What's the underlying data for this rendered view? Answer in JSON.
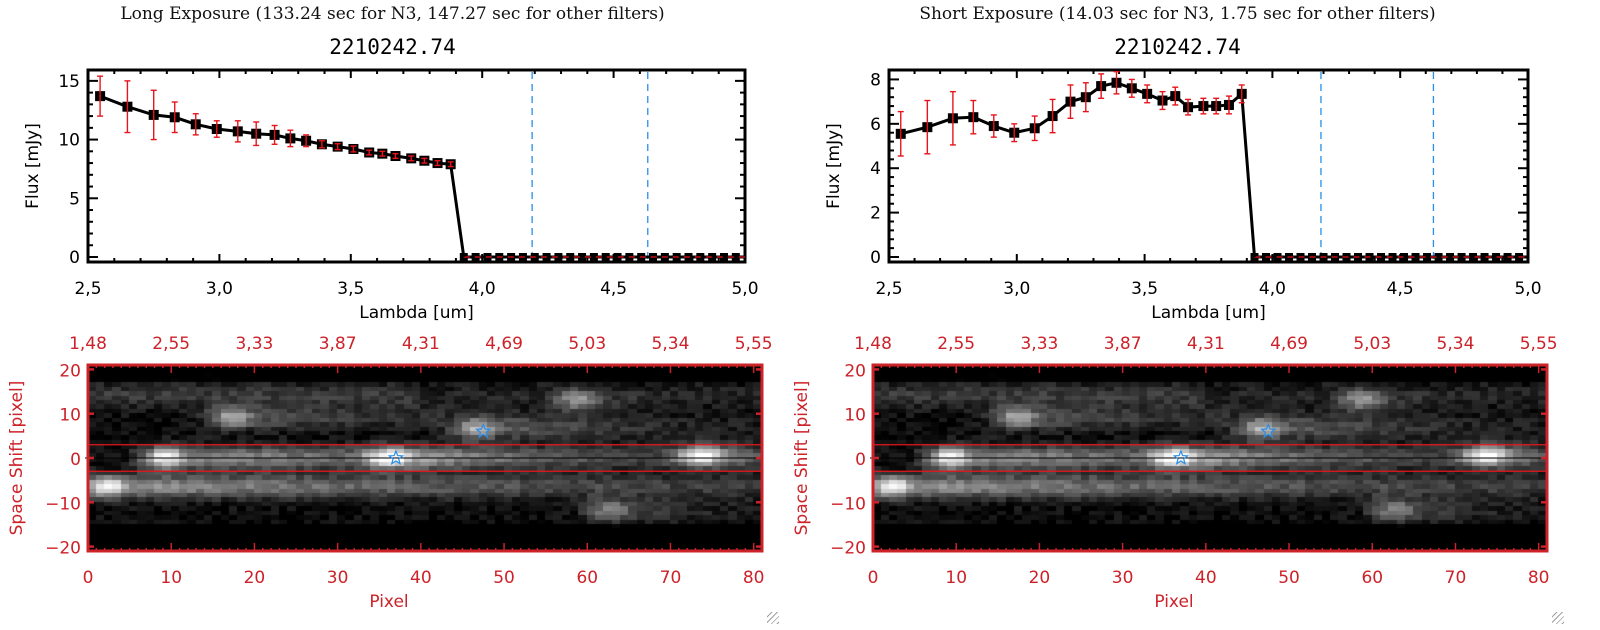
{
  "panels": [
    {
      "id": "long",
      "exposure_title": "Long Exposure (133.24 sec for N3, 147.27 sec for other filters)",
      "object_title": "2210242.74",
      "spectrum": {
        "xlabel": "Lambda [um]",
        "ylabel": "Flux [mJy]",
        "xlim": [
          2.5,
          5.0
        ],
        "ylim": [
          0,
          15.5
        ],
        "xticks": [
          "2.5",
          "3.0",
          "3.5",
          "4.0",
          "4.5",
          "5.0"
        ],
        "xtick_values": [
          2.5,
          3.0,
          3.5,
          4.0,
          4.5,
          5.0
        ],
        "yticks": [
          "0",
          "5",
          "10",
          "15"
        ],
        "ytick_values": [
          0,
          5,
          10,
          15
        ]
      },
      "image": {
        "xlabel": "Pixel",
        "ylabel": "Space Shift [pixel]",
        "xticks": [
          "0",
          "10",
          "20",
          "30",
          "40",
          "50",
          "60",
          "70",
          "80"
        ],
        "yticks": [
          "20",
          "10",
          "0",
          "-10",
          "-20"
        ],
        "top_ticks": [
          "1.48",
          "2.55",
          "3.33",
          "3.87",
          "4.31",
          "4.69",
          "5.03",
          "5.34",
          "5.55"
        ]
      }
    },
    {
      "id": "short",
      "exposure_title": "Short Exposure (14.03 sec for N3, 1.75 sec for other filters)",
      "object_title": "2210242.74",
      "spectrum": {
        "xlabel": "Lambda [um]",
        "ylabel": "Flux [mJy]",
        "xlim": [
          2.5,
          5.0
        ],
        "ylim": [
          0,
          8.2
        ],
        "xticks": [
          "2.5",
          "3.0",
          "3.5",
          "4.0",
          "4.5",
          "5.0"
        ],
        "xtick_values": [
          2.5,
          3.0,
          3.5,
          4.0,
          4.5,
          5.0
        ],
        "yticks": [
          "0",
          "2",
          "4",
          "6",
          "8"
        ],
        "ytick_values": [
          0,
          2,
          4,
          6,
          8
        ]
      },
      "image": {
        "xlabel": "Pixel",
        "ylabel": "Space Shift [pixel]",
        "xticks": [
          "0",
          "10",
          "20",
          "30",
          "40",
          "50",
          "60",
          "70",
          "80"
        ],
        "yticks": [
          "20",
          "10",
          "0",
          "-10",
          "-20"
        ],
        "top_ticks": [
          "1.48",
          "2.55",
          "3.33",
          "3.87",
          "4.31",
          "4.69",
          "5.03",
          "5.34",
          "5.55"
        ]
      }
    }
  ],
  "colors": {
    "data_line": "#000000",
    "error_bar": "#e8141c",
    "filter_line": "#2a8ee8",
    "zero_line": "#e8141c",
    "image_axis": "#cc2229",
    "aperture_line": "#e8141c",
    "center_line": "#000000",
    "star_marker": "#2a8ee8"
  },
  "chart_data": [
    {
      "type": "line",
      "title": "Long Exposure (133.24 sec for N3, 147.27 sec for other filters) — 2210242.74",
      "xlabel": "Lambda [um]",
      "ylabel": "Flux [mJy]",
      "xlim": [
        2.5,
        5.0
      ],
      "ylim": [
        0,
        15.5
      ],
      "grid": false,
      "series": [
        {
          "name": "flux",
          "x": [
            2.546,
            2.65,
            2.75,
            2.83,
            2.91,
            2.99,
            3.07,
            3.14,
            3.21,
            3.27,
            3.33,
            3.39,
            3.45,
            3.51,
            3.57,
            3.62,
            3.67,
            3.73,
            3.78,
            3.83,
            3.88,
            3.93
          ],
          "y": [
            13.7,
            12.8,
            12.1,
            11.9,
            11.3,
            10.9,
            10.7,
            10.5,
            10.4,
            10.1,
            9.9,
            9.6,
            9.4,
            9.2,
            8.9,
            8.8,
            8.6,
            8.4,
            8.2,
            8.0,
            7.9,
            0.0
          ],
          "err": [
            1.7,
            2.2,
            2.1,
            1.3,
            0.9,
            0.7,
            0.9,
            1.0,
            0.8,
            0.7,
            0.5,
            0.3,
            0.25,
            0.25,
            0.2,
            0.2,
            0.2,
            0.2,
            0.2,
            0.2,
            0.2,
            0
          ]
        },
        {
          "name": "zero-flux",
          "x_start": 3.93,
          "x_end": 5.0,
          "step": 0.045,
          "y": 0
        }
      ],
      "vlines": [
        4.19,
        4.63
      ]
    },
    {
      "type": "line",
      "title": "Short Exposure (14.03 sec for N3, 1.75 sec for other filters) — 2210242.74",
      "xlabel": "Lambda [um]",
      "ylabel": "Flux [mJy]",
      "xlim": [
        2.5,
        5.0
      ],
      "ylim": [
        0,
        8.2
      ],
      "grid": false,
      "series": [
        {
          "name": "flux",
          "x": [
            2.546,
            2.65,
            2.75,
            2.83,
            2.91,
            2.99,
            3.07,
            3.14,
            3.21,
            3.27,
            3.33,
            3.39,
            3.45,
            3.51,
            3.57,
            3.62,
            3.67,
            3.73,
            3.78,
            3.83,
            3.88,
            3.93
          ],
          "y": [
            5.55,
            5.85,
            6.25,
            6.3,
            5.9,
            5.6,
            5.8,
            6.35,
            7.0,
            7.2,
            7.7,
            7.85,
            7.6,
            7.35,
            7.05,
            7.25,
            6.75,
            6.8,
            6.8,
            6.85,
            7.35,
            0.0
          ],
          "err": [
            1.0,
            1.2,
            1.2,
            0.75,
            0.5,
            0.4,
            0.55,
            0.75,
            0.75,
            0.65,
            0.55,
            0.5,
            0.4,
            0.4,
            0.4,
            0.4,
            0.35,
            0.35,
            0.35,
            0.4,
            0.4,
            0
          ]
        },
        {
          "name": "zero-flux",
          "x_start": 3.93,
          "x_end": 5.0,
          "step": 0.045,
          "y": 0
        }
      ],
      "vlines": [
        4.19,
        4.63
      ]
    },
    {
      "type": "heatmap",
      "title": "2D spectrum image (long exposure)",
      "xlabel": "Pixel",
      "ylabel": "Space Shift [pixel]",
      "xlim": [
        0,
        81
      ],
      "ylim": [
        -21,
        21
      ],
      "top_axis_labels": [
        "1.48",
        "2.55",
        "3.33",
        "3.87",
        "4.31",
        "4.69",
        "5.03",
        "5.34",
        "5.55"
      ],
      "aperture": [
        -3,
        3
      ],
      "markers": [
        {
          "x": 37,
          "y": 0
        },
        {
          "x": 47.5,
          "y": 6
        }
      ],
      "sources": [
        {
          "x": 2.5,
          "y": -6.5,
          "peak": 1.0,
          "trail": 70
        },
        {
          "x": 9.5,
          "y": 0,
          "peak": 0.95,
          "trail": 64
        },
        {
          "x": 17.5,
          "y": 9,
          "peak": 0.62,
          "trail": 20
        },
        {
          "x": 47,
          "y": 6.5,
          "peak": 0.65,
          "trail": 18
        },
        {
          "x": 36.5,
          "y": 0,
          "peak": 0.75,
          "trail": 10
        },
        {
          "x": 74,
          "y": 0.5,
          "peak": 0.8,
          "trail": 6
        },
        {
          "x": 59,
          "y": 13,
          "peak": 0.45,
          "trail": 4
        },
        {
          "x": 63,
          "y": -12,
          "peak": 0.5,
          "trail": 10
        }
      ]
    },
    {
      "type": "heatmap",
      "title": "2D spectrum image (short exposure)",
      "xlabel": "Pixel",
      "ylabel": "Space Shift [pixel]",
      "xlim": [
        0,
        81
      ],
      "ylim": [
        -21,
        21
      ],
      "top_axis_labels": [
        "1.48",
        "2.55",
        "3.33",
        "3.87",
        "4.31",
        "4.69",
        "5.03",
        "5.34",
        "5.55"
      ],
      "aperture": [
        -3,
        3
      ],
      "markers": [
        {
          "x": 37,
          "y": 0
        },
        {
          "x": 47.5,
          "y": 6
        }
      ],
      "sources": [
        {
          "x": 2.5,
          "y": -6.5,
          "peak": 1.0,
          "trail": 70
        },
        {
          "x": 9.5,
          "y": 0,
          "peak": 0.95,
          "trail": 64
        },
        {
          "x": 17.5,
          "y": 9,
          "peak": 0.62,
          "trail": 20
        },
        {
          "x": 47,
          "y": 6.5,
          "peak": 0.65,
          "trail": 18
        },
        {
          "x": 36.5,
          "y": 0,
          "peak": 0.75,
          "trail": 10
        },
        {
          "x": 74,
          "y": 0.5,
          "peak": 0.8,
          "trail": 6
        },
        {
          "x": 59,
          "y": 13,
          "peak": 0.45,
          "trail": 4
        },
        {
          "x": 63,
          "y": -12,
          "peak": 0.5,
          "trail": 10
        }
      ]
    }
  ]
}
